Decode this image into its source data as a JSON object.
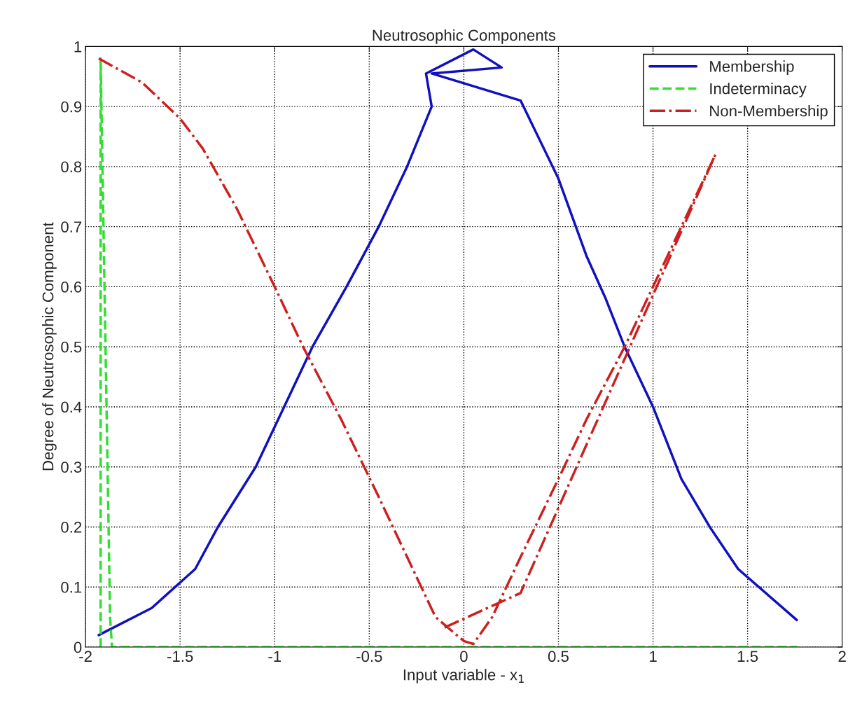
{
  "chart_data": {
    "type": "line",
    "title": "Neutrosophic Components",
    "xlabel": "Input variable - x$_{1}$",
    "ylabel": "Degree of Neutrosophic Component",
    "xlim": [
      -2,
      2
    ],
    "ylim": [
      0,
      1
    ],
    "xticks": [
      -2,
      -1.5,
      -1,
      -0.5,
      0,
      0.5,
      1,
      1.5,
      2
    ],
    "yticks": [
      0,
      0.1,
      0.2,
      0.3,
      0.4,
      0.5,
      0.6,
      0.7,
      0.8,
      0.9,
      1
    ],
    "grid": true,
    "legend": "top right",
    "series": [
      {
        "name": "Membership",
        "color": "#1010c0",
        "line_style": "solid",
        "x": [
          -1.93,
          -1.65,
          -1.42,
          -1.3,
          -1.1,
          -0.95,
          -0.8,
          -0.62,
          -0.45,
          -0.3,
          -0.17,
          -0.2,
          0.05,
          0.2,
          -0.17,
          0.3,
          0.5,
          0.65,
          0.75,
          0.85,
          1.0,
          1.15,
          1.3,
          1.45,
          1.76
        ],
        "values": [
          0.02,
          0.065,
          0.13,
          0.2,
          0.3,
          0.4,
          0.5,
          0.6,
          0.7,
          0.8,
          0.9,
          0.955,
          0.995,
          0.965,
          0.955,
          0.91,
          0.78,
          0.65,
          0.58,
          0.5,
          0.4,
          0.28,
          0.2,
          0.13,
          0.045
        ]
      },
      {
        "name": "Indeterminacy",
        "color": "#33dd33",
        "line_style": "dashed",
        "x": [
          -1.92,
          -1.92,
          -1.87,
          -1.86,
          1.76
        ],
        "values": [
          0,
          0.98,
          0.05,
          0,
          0
        ]
      },
      {
        "name": "Non-Membership",
        "color": "#cc2020",
        "line_style": "dashdot",
        "x": [
          -1.93,
          -1.7,
          -1.5,
          -1.38,
          -1.2,
          -1.0,
          -0.85,
          -0.65,
          -0.45,
          -0.3,
          -0.15,
          0,
          0.05,
          0.15,
          0.3,
          0.5,
          0.65,
          0.85,
          1.0,
          1.15,
          1.33,
          0.3,
          -0.12
        ],
        "values": [
          0.98,
          0.94,
          0.88,
          0.83,
          0.73,
          0.6,
          0.5,
          0.38,
          0.25,
          0.15,
          0.05,
          0.01,
          0.005,
          0.05,
          0.15,
          0.28,
          0.38,
          0.5,
          0.6,
          0.7,
          0.82,
          0.09,
          0.03
        ]
      }
    ]
  }
}
